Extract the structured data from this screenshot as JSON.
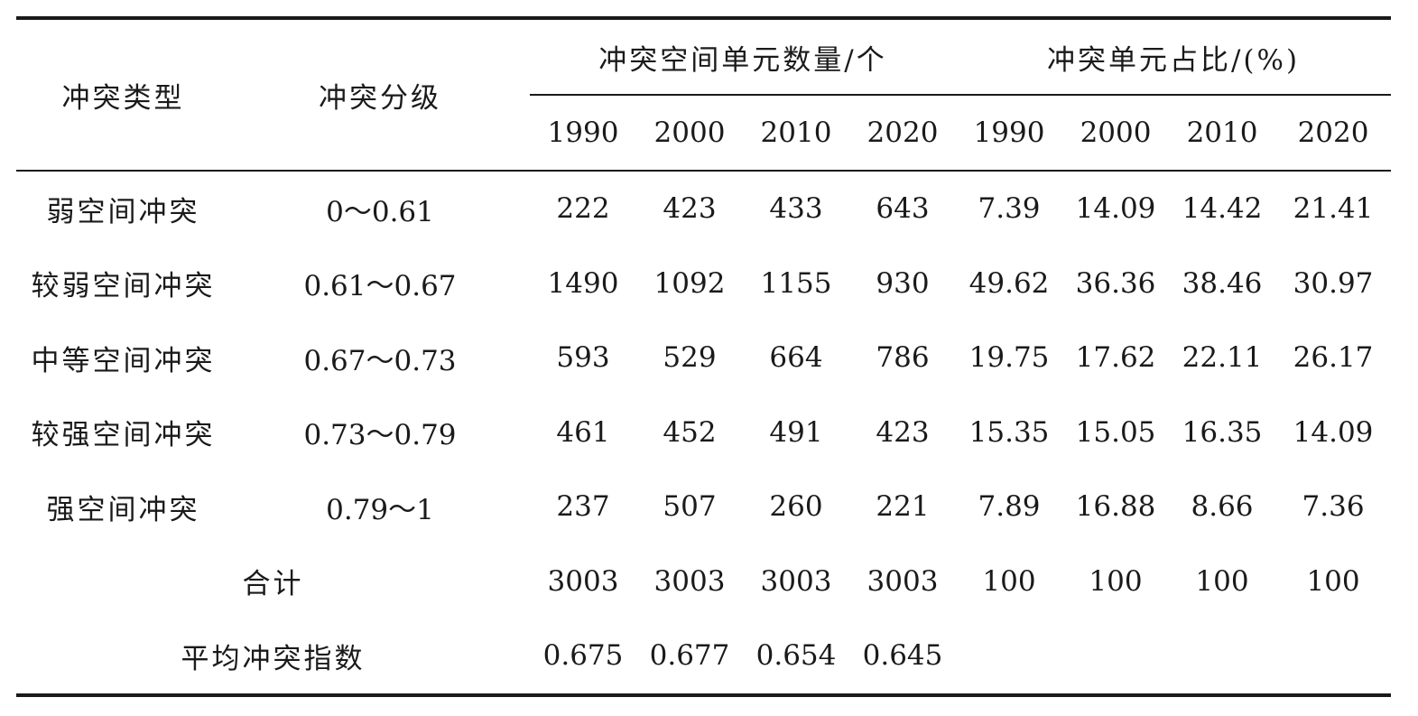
{
  "table": {
    "headers": {
      "type": "冲突类型",
      "grade": "冲突分级",
      "count_group": "冲突空间单元数量/个",
      "share_group": "冲突单元占比/(%)",
      "count_years": [
        "1990",
        "2000",
        "2010",
        "2020"
      ],
      "share_years": [
        "1990",
        "2000",
        "2010",
        "2020"
      ]
    },
    "rows": [
      {
        "type": "弱空间冲突",
        "grade": "0～0.61",
        "counts": [
          "222",
          "423",
          "433",
          "643"
        ],
        "shares": [
          "7.39",
          "14.09",
          "14.42",
          "21.41"
        ]
      },
      {
        "type": "较弱空间冲突",
        "grade": "0.61～0.67",
        "counts": [
          "1490",
          "1092",
          "1155",
          "930"
        ],
        "shares": [
          "49.62",
          "36.36",
          "38.46",
          "30.97"
        ]
      },
      {
        "type": "中等空间冲突",
        "grade": "0.67～0.73",
        "counts": [
          "593",
          "529",
          "664",
          "786"
        ],
        "shares": [
          "19.75",
          "17.62",
          "22.11",
          "26.17"
        ]
      },
      {
        "type": "较强空间冲突",
        "grade": "0.73～0.79",
        "counts": [
          "461",
          "452",
          "491",
          "423"
        ],
        "shares": [
          "15.35",
          "15.05",
          "16.35",
          "14.09"
        ]
      },
      {
        "type": "强空间冲突",
        "grade": "0.79～1",
        "counts": [
          "237",
          "507",
          "260",
          "221"
        ],
        "shares": [
          "7.89",
          "16.88",
          "8.66",
          "7.36"
        ]
      }
    ],
    "total": {
      "label": "合计",
      "counts": [
        "3003",
        "3003",
        "3003",
        "3003"
      ],
      "shares": [
        "100",
        "100",
        "100",
        "100"
      ]
    },
    "average": {
      "label": "平均冲突指数",
      "values": [
        "0.675",
        "0.677",
        "0.654",
        "0.645"
      ]
    }
  }
}
